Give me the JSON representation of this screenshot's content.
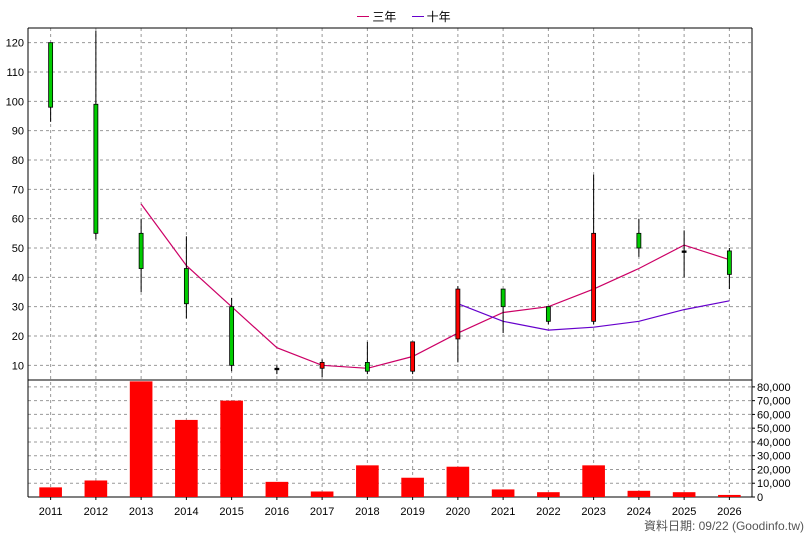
{
  "legend": {
    "three_year": {
      "label": "三年",
      "color": "#cc0066"
    },
    "ten_year": {
      "label": "十年",
      "color": "#6600cc"
    }
  },
  "credit": "資料日期: 09/22 (Goodinfo.tw)",
  "chart_data": [
    {
      "type": "candlestick",
      "title": "",
      "categories": [
        "2011",
        "2012",
        "2013",
        "2014",
        "2015",
        "2016",
        "2017",
        "2018",
        "2019",
        "2020",
        "2021",
        "2022",
        "2023",
        "2024",
        "2025",
        "2026"
      ],
      "ylim": [
        5,
        125
      ],
      "yticks": [
        10,
        20,
        30,
        40,
        50,
        60,
        70,
        80,
        90,
        100,
        110,
        120
      ],
      "grid": true,
      "candles": [
        {
          "open": 98,
          "close": 120,
          "high": 120,
          "low": 93,
          "color": "green"
        },
        {
          "open": 99,
          "close": 55,
          "high": 124,
          "low": 53,
          "color": "green"
        },
        {
          "open": 43,
          "close": 55,
          "high": 60,
          "low": 35,
          "color": "green"
        },
        {
          "open": 31,
          "close": 43,
          "high": 54,
          "low": 26,
          "color": "green"
        },
        {
          "open": 10,
          "close": 30,
          "high": 33,
          "low": 8,
          "color": "green"
        },
        {
          "open": 9,
          "close": 9,
          "high": 10,
          "low": 7,
          "color": "black"
        },
        {
          "open": 11,
          "close": 9,
          "high": 12,
          "low": 6,
          "color": "red"
        },
        {
          "open": 8,
          "close": 11,
          "high": 18,
          "low": 7,
          "color": "green"
        },
        {
          "open": 8,
          "close": 18,
          "high": 18,
          "low": 7,
          "color": "red"
        },
        {
          "open": 19,
          "close": 36,
          "high": 37,
          "low": 11,
          "color": "red"
        },
        {
          "open": 30,
          "close": 36,
          "high": 36,
          "low": 21,
          "color": "green"
        },
        {
          "open": 25,
          "close": 30,
          "high": 30,
          "low": 24,
          "color": "green"
        },
        {
          "open": 25,
          "close": 55,
          "high": 75,
          "low": 24,
          "color": "red"
        },
        {
          "open": 50,
          "close": 55,
          "high": 60,
          "low": 47,
          "color": "green"
        },
        {
          "open": 49,
          "close": 49,
          "high": 56,
          "low": 40,
          "color": "black"
        },
        {
          "open": 41,
          "close": 49,
          "high": 50,
          "low": 36,
          "color": "green"
        }
      ],
      "series": [
        {
          "name": "三年",
          "values": [
            null,
            null,
            65,
            44,
            30,
            16,
            10,
            9,
            13,
            21,
            28,
            30,
            36,
            43,
            51,
            46
          ]
        },
        {
          "name": "十年",
          "values": [
            null,
            null,
            null,
            null,
            null,
            null,
            null,
            null,
            null,
            31,
            25,
            22,
            23,
            25,
            29,
            32
          ]
        }
      ]
    },
    {
      "type": "bar",
      "categories": [
        "2011",
        "2012",
        "2013",
        "2014",
        "2015",
        "2016",
        "2017",
        "2018",
        "2019",
        "2020",
        "2021",
        "2022",
        "2023",
        "2024",
        "2025",
        "2026"
      ],
      "values": [
        7000,
        12000,
        84000,
        56000,
        70000,
        11000,
        4000,
        23000,
        14000,
        22000,
        5500,
        3500,
        23000,
        4500,
        3500,
        1500
      ],
      "ylim": [
        0,
        85000
      ],
      "yticks": [
        0,
        10000,
        20000,
        30000,
        40000,
        50000,
        60000,
        70000,
        80000
      ],
      "ytick_labels": [
        "0",
        "10,000",
        "20,000",
        "30,000",
        "40,000",
        "50,000",
        "60,000",
        "70,000",
        "80,000"
      ],
      "color": "#ff0000",
      "grid": true
    }
  ]
}
